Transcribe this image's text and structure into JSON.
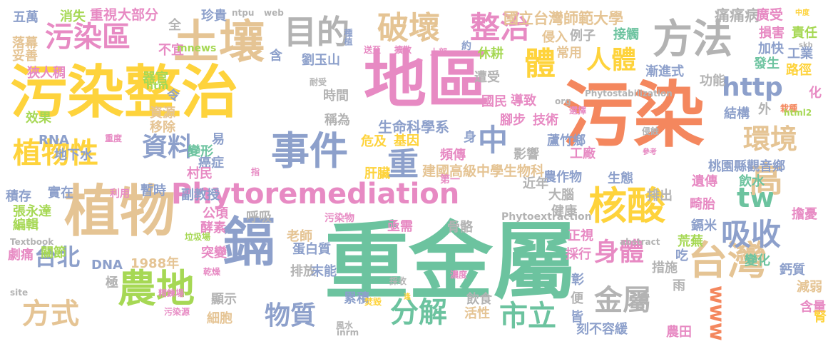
{
  "palette": {
    "green": "#6cc39f",
    "orange": "#f4875e",
    "pink": "#e78ac3",
    "blue": "#8da0cb",
    "yellow": "#fed33c",
    "lime": "#a6d854",
    "tan": "#e5c494",
    "gray": "#b3b3b3"
  },
  "words": [
    {
      "text": "重金屬",
      "color": "green"
    },
    {
      "text": "污染",
      "color": "orange"
    },
    {
      "text": "污染整治",
      "color": "yellow"
    },
    {
      "text": "地區",
      "color": "pink"
    },
    {
      "text": "植物",
      "color": "tan"
    },
    {
      "text": "土壤",
      "color": "tan"
    },
    {
      "text": "鎘",
      "color": "blue"
    },
    {
      "text": "方法",
      "color": "gray"
    },
    {
      "text": "事件",
      "color": "blue"
    },
    {
      "text": "台灣",
      "color": "tan"
    },
    {
      "text": "核酸",
      "color": "yellow"
    },
    {
      "text": "農地",
      "color": "lime"
    },
    {
      "text": "Phytoremediation",
      "color": "pink"
    },
    {
      "text": "目的",
      "color": "gray"
    },
    {
      "text": "污染區",
      "color": "pink"
    },
    {
      "text": "植物性",
      "color": "yellow"
    },
    {
      "text": "破壞",
      "color": "tan"
    },
    {
      "text": "體",
      "color": "yellow"
    },
    {
      "text": "人體",
      "color": "yellow"
    },
    {
      "text": "重",
      "color": "blue"
    },
    {
      "text": "資料",
      "color": "blue"
    },
    {
      "text": "分解",
      "color": "green"
    },
    {
      "text": "物質",
      "color": "blue"
    },
    {
      "text": "方式",
      "color": "tan"
    },
    {
      "text": "吸收",
      "color": "blue"
    },
    {
      "text": "身體",
      "color": "pink"
    },
    {
      "text": "金屬",
      "color": "gray"
    },
    {
      "text": "www",
      "color": "orange"
    },
    {
      "text": "http",
      "color": "blue"
    },
    {
      "text": "整治",
      "color": "pink"
    },
    {
      "text": "中",
      "color": "blue"
    },
    {
      "text": "環境",
      "color": "tan"
    },
    {
      "text": "tw",
      "color": "green"
    },
    {
      "text": "高",
      "color": "tan"
    },
    {
      "text": "市立",
      "color": "green"
    },
    {
      "text": "台北",
      "color": "blue"
    },
    {
      "text": "國立台灣師範大學",
      "color": "tan"
    },
    {
      "text": "生命科學系",
      "color": "blue"
    },
    {
      "text": "建國高級中學生物科",
      "color": "tan"
    },
    {
      "text": "桃園縣觀音鄉",
      "color": "blue"
    },
    {
      "text": "重視",
      "color": "pink"
    },
    {
      "text": "大部分",
      "color": "pink"
    },
    {
      "text": "珍貴",
      "color": "blue"
    },
    {
      "text": "ntpu",
      "color": "gray"
    },
    {
      "text": "web",
      "color": "gray"
    },
    {
      "text": "痛痛病",
      "color": "gray"
    },
    {
      "text": "廣受",
      "color": "pink"
    },
    {
      "text": "中度",
      "color": "yellow"
    },
    {
      "text": "五萬",
      "color": "blue"
    },
    {
      "text": "消失",
      "color": "lime"
    },
    {
      "text": "全",
      "color": "gray"
    },
    {
      "text": "損害",
      "color": "pink"
    },
    {
      "text": "責任",
      "color": "lime"
    },
    {
      "text": "skh",
      "color": "gray"
    },
    {
      "text": "加快",
      "color": "blue"
    },
    {
      "text": "工業",
      "color": "blue"
    },
    {
      "text": "發生",
      "color": "green"
    },
    {
      "text": "路徑",
      "color": "yellow"
    },
    {
      "text": "接觸",
      "color": "green"
    },
    {
      "text": "例子",
      "color": "gray"
    },
    {
      "text": "侵入",
      "color": "tan"
    },
    {
      "text": "常用",
      "color": "tan"
    },
    {
      "text": "休耕",
      "color": "lime"
    },
    {
      "text": "約",
      "color": "blue"
    },
    {
      "text": "上部",
      "color": "pink"
    },
    {
      "text": "擴散",
      "color": "pink"
    },
    {
      "text": "種植",
      "color": "blue"
    },
    {
      "text": "送至",
      "color": "pink"
    },
    {
      "text": "劉玉山",
      "color": "blue"
    },
    {
      "text": "含",
      "color": "blue"
    },
    {
      "text": "落幕",
      "color": "tan"
    },
    {
      "text": "妥善",
      "color": "tan"
    },
    {
      "text": "不宜",
      "color": "pink"
    },
    {
      "text": "mnews",
      "color": "lime"
    },
    {
      "text": "狹人稠",
      "color": "pink"
    },
    {
      "text": "htm",
      "color": "lime"
    },
    {
      "text": "器官",
      "color": "lime"
    },
    {
      "text": "耐受",
      "color": "gray"
    },
    {
      "text": "遭受",
      "color": "gray"
    },
    {
      "text": "漸進式",
      "color": "blue"
    },
    {
      "text": "功能",
      "color": "gray"
    },
    {
      "text": "化",
      "color": "pink"
    },
    {
      "text": "時間",
      "color": "gray"
    },
    {
      "text": "令",
      "color": "blue"
    },
    {
      "text": "國民",
      "color": "pink"
    },
    {
      "text": "導致",
      "color": "pink"
    },
    {
      "text": "org",
      "color": "gray"
    },
    {
      "text": "Phytostabilization",
      "color": "gray"
    },
    {
      "text": "腳步",
      "color": "pink"
    },
    {
      "text": "技術",
      "color": "pink"
    },
    {
      "text": "選擇",
      "color": "pink"
    },
    {
      "text": "效果",
      "color": "lime"
    },
    {
      "text": "資源",
      "color": "tan"
    },
    {
      "text": "移除",
      "color": "tan"
    },
    {
      "text": "稱為",
      "color": "gray"
    },
    {
      "text": "結構",
      "color": "blue"
    },
    {
      "text": "外",
      "color": "gray"
    },
    {
      "text": "栽種",
      "color": "orange"
    },
    {
      "text": "html2",
      "color": "lime"
    },
    {
      "text": "RNA",
      "color": "blue"
    },
    {
      "text": "地下水",
      "color": "blue"
    },
    {
      "text": "重度",
      "color": "pink"
    },
    {
      "text": "易",
      "color": "blue"
    },
    {
      "text": "身",
      "color": "blue"
    },
    {
      "text": "危及",
      "color": "yellow"
    },
    {
      "text": "基因",
      "color": "yellow"
    },
    {
      "text": "蘆竹鄉",
      "color": "blue"
    },
    {
      "text": "侵蝕",
      "color": "gray"
    },
    {
      "text": "變形",
      "color": "green"
    },
    {
      "text": "頻傳",
      "color": "pink"
    },
    {
      "text": "影響",
      "color": "gray"
    },
    {
      "text": "工廠",
      "color": "pink"
    },
    {
      "text": "參考",
      "color": "pink"
    },
    {
      "text": "癌症",
      "color": "blue"
    },
    {
      "text": "村民",
      "color": "pink"
    },
    {
      "text": "指",
      "color": "pink"
    },
    {
      "text": "肝臟",
      "color": "yellow"
    },
    {
      "text": "農作物",
      "color": "blue"
    },
    {
      "text": "生態",
      "color": "blue"
    },
    {
      "text": "遺傳",
      "color": "pink"
    },
    {
      "text": "飲水",
      "color": "green"
    },
    {
      "text": "積存",
      "color": "blue"
    },
    {
      "text": "實在",
      "color": "blue"
    },
    {
      "text": "利用",
      "color": "pink"
    },
    {
      "text": "暫時",
      "color": "blue"
    },
    {
      "text": "副教授",
      "color": "blue"
    },
    {
      "text": "第一",
      "color": "pink"
    },
    {
      "text": "近年",
      "color": "gray"
    },
    {
      "text": "大腦",
      "color": "gray"
    },
    {
      "text": "排出",
      "color": "gray"
    },
    {
      "text": "張永達",
      "color": "lime"
    },
    {
      "text": "公頃",
      "color": "pink"
    },
    {
      "text": "呼吸",
      "color": "gray"
    },
    {
      "text": "健康",
      "color": "gray"
    },
    {
      "text": "畸胎",
      "color": "pink"
    },
    {
      "text": "編輯",
      "color": "lime"
    },
    {
      "text": "酵素",
      "color": "pink"
    },
    {
      "text": "污染物",
      "color": "pink"
    },
    {
      "text": "Phytoextraction",
      "color": "gray"
    },
    {
      "text": "擔憂",
      "color": "pink"
    },
    {
      "text": "Textbook",
      "color": "gray"
    },
    {
      "text": "垃圾場",
      "color": "lime"
    },
    {
      "text": "老師",
      "color": "tan"
    },
    {
      "text": "骨骼",
      "color": "gray"
    },
    {
      "text": "正視",
      "color": "pink"
    },
    {
      "text": "鎘米",
      "color": "blue"
    },
    {
      "text": "荒蕪",
      "color": "lime"
    },
    {
      "text": "劇痛",
      "color": "pink"
    },
    {
      "text": "關節",
      "color": "lime"
    },
    {
      "text": "亟需",
      "color": "pink"
    },
    {
      "text": "蛋白質",
      "color": "blue"
    },
    {
      "text": "abstract",
      "color": "gray"
    },
    {
      "text": "吃",
      "color": "blue"
    },
    {
      "text": "突變",
      "color": "pink"
    },
    {
      "text": "DNA",
      "color": "blue"
    },
    {
      "text": "1988年",
      "color": "tan"
    },
    {
      "text": "乾燥",
      "color": "pink"
    },
    {
      "text": "採行",
      "color": "pink"
    },
    {
      "text": "變化",
      "color": "green"
    },
    {
      "text": "措施",
      "color": "gray"
    },
    {
      "text": "鈣質",
      "color": "blue"
    },
    {
      "text": "極",
      "color": "gray"
    },
    {
      "text": "排放",
      "color": "gray"
    },
    {
      "text": "末能",
      "color": "blue"
    },
    {
      "text": "採收",
      "color": "gray"
    },
    {
      "text": "濃度",
      "color": "pink"
    },
    {
      "text": "彰",
      "color": "blue"
    },
    {
      "text": "雨",
      "color": "gray"
    },
    {
      "text": "減弱",
      "color": "tan"
    },
    {
      "text": "site",
      "color": "gray"
    },
    {
      "text": "精鍊場",
      "color": "pink"
    },
    {
      "text": "顯示",
      "color": "gray"
    },
    {
      "text": "累積",
      "color": "blue"
    },
    {
      "text": "焚毀",
      "color": "yellow"
    },
    {
      "text": "逢",
      "color": "yellow"
    },
    {
      "text": "飲食",
      "color": "gray"
    },
    {
      "text": "便",
      "color": "gray"
    },
    {
      "text": "實",
      "color": "gray"
    },
    {
      "text": "含量",
      "color": "pink"
    },
    {
      "text": "腎",
      "color": "yellow"
    },
    {
      "text": "污染源",
      "color": "pink"
    },
    {
      "text": "細胞",
      "color": "tan"
    },
    {
      "text": "風水",
      "color": "gray"
    },
    {
      "text": "inrm",
      "color": "gray"
    },
    {
      "text": "活性",
      "color": "tan"
    },
    {
      "text": "皆",
      "color": "blue"
    },
    {
      "text": "刻不容緩",
      "color": "blue"
    },
    {
      "text": "農田",
      "color": "pink"
    }
  ]
}
